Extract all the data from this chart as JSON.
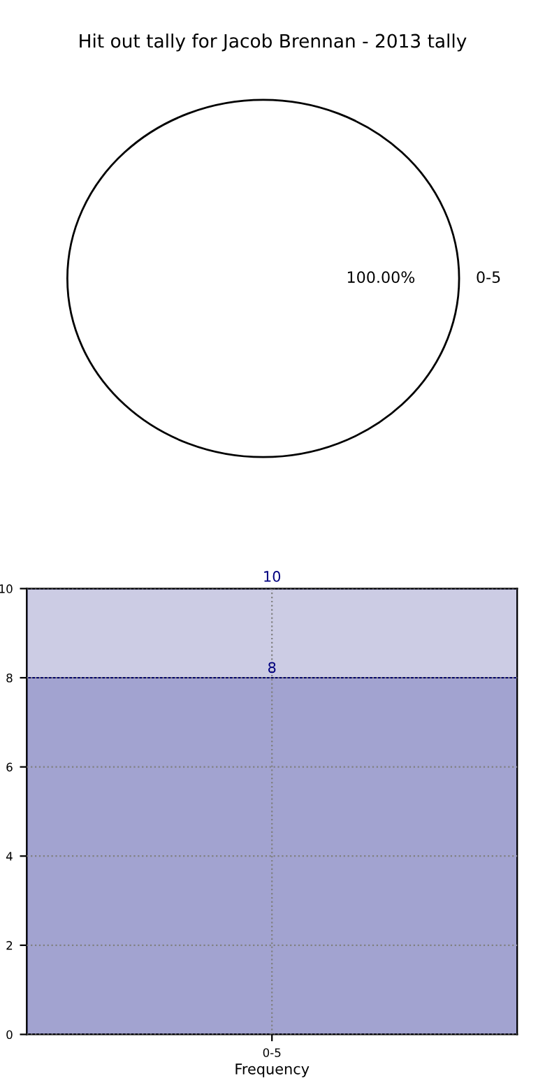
{
  "chart_data": [
    {
      "type": "pie",
      "title": "Hit out tally for Jacob Brennan - 2013 tally",
      "categories": [
        "0-5"
      ],
      "values": [
        100
      ],
      "colors": [
        "#ffffff"
      ],
      "value_labels": [
        "100.00%"
      ]
    },
    {
      "type": "bar",
      "xlabel": "Frequency",
      "categories": [
        "0-5"
      ],
      "stacked": true,
      "series": [
        {
          "color": "#a2a3d0",
          "values": [
            8
          ],
          "value_labels": [
            "8"
          ]
        },
        {
          "color": "#cccce4",
          "values": [
            2
          ],
          "value_labels": [
            null
          ]
        }
      ],
      "totals": [
        "10"
      ],
      "ylim": [
        0,
        10
      ],
      "yticks": [
        0,
        2,
        4,
        6,
        8,
        10
      ],
      "grid": true
    }
  ]
}
